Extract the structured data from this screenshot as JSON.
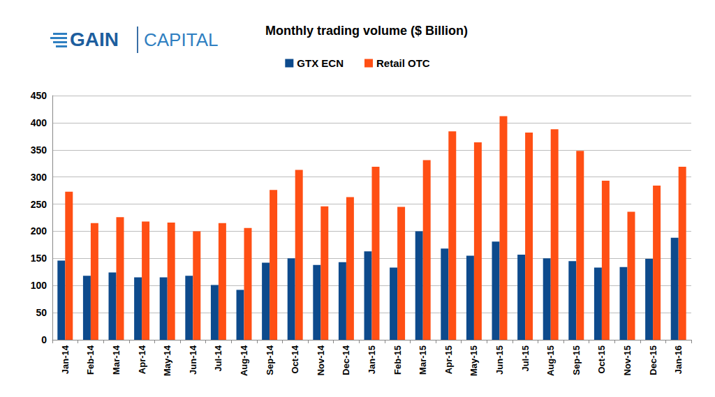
{
  "chart_data": {
    "type": "bar",
    "title": "Monthly trading volume ($ Billion)",
    "annotations": [
      "GAIN",
      "CAPITAL"
    ],
    "categories": [
      "Jan-14",
      "Feb-14",
      "Mar-14",
      "Apr-14",
      "May-14",
      "Jun-14",
      "Jul-14",
      "Aug-14",
      "Sep-14",
      "Oct-14",
      "Nov-14",
      "Dec-14",
      "Jan-15",
      "Feb-15",
      "Mar-15",
      "Apr-15",
      "May-15",
      "Jun-15",
      "Jul-15",
      "Aug-15",
      "Sep-15",
      "Oct-15",
      "Nov-15",
      "Dec-15",
      "Jan-16"
    ],
    "series": [
      {
        "name": "GTX ECN",
        "color": "#0d4a8c",
        "values": [
          146,
          118,
          124,
          115,
          115,
          118,
          101,
          92,
          142,
          150,
          138,
          143,
          163,
          133,
          200,
          168,
          155,
          181,
          157,
          150,
          145,
          133,
          134,
          149,
          188
        ]
      },
      {
        "name": "Retail OTC",
        "color": "#ff4f14",
        "values": [
          273,
          215,
          226,
          218,
          216,
          200,
          215,
          206,
          276,
          313,
          246,
          263,
          319,
          245,
          331,
          384,
          364,
          412,
          382,
          388,
          348,
          293,
          236,
          284,
          319
        ]
      }
    ],
    "ylim": [
      0,
      450
    ],
    "yticks": [
      0,
      50,
      100,
      150,
      200,
      250,
      300,
      350,
      400,
      450
    ],
    "grid": true,
    "legend": "top"
  }
}
